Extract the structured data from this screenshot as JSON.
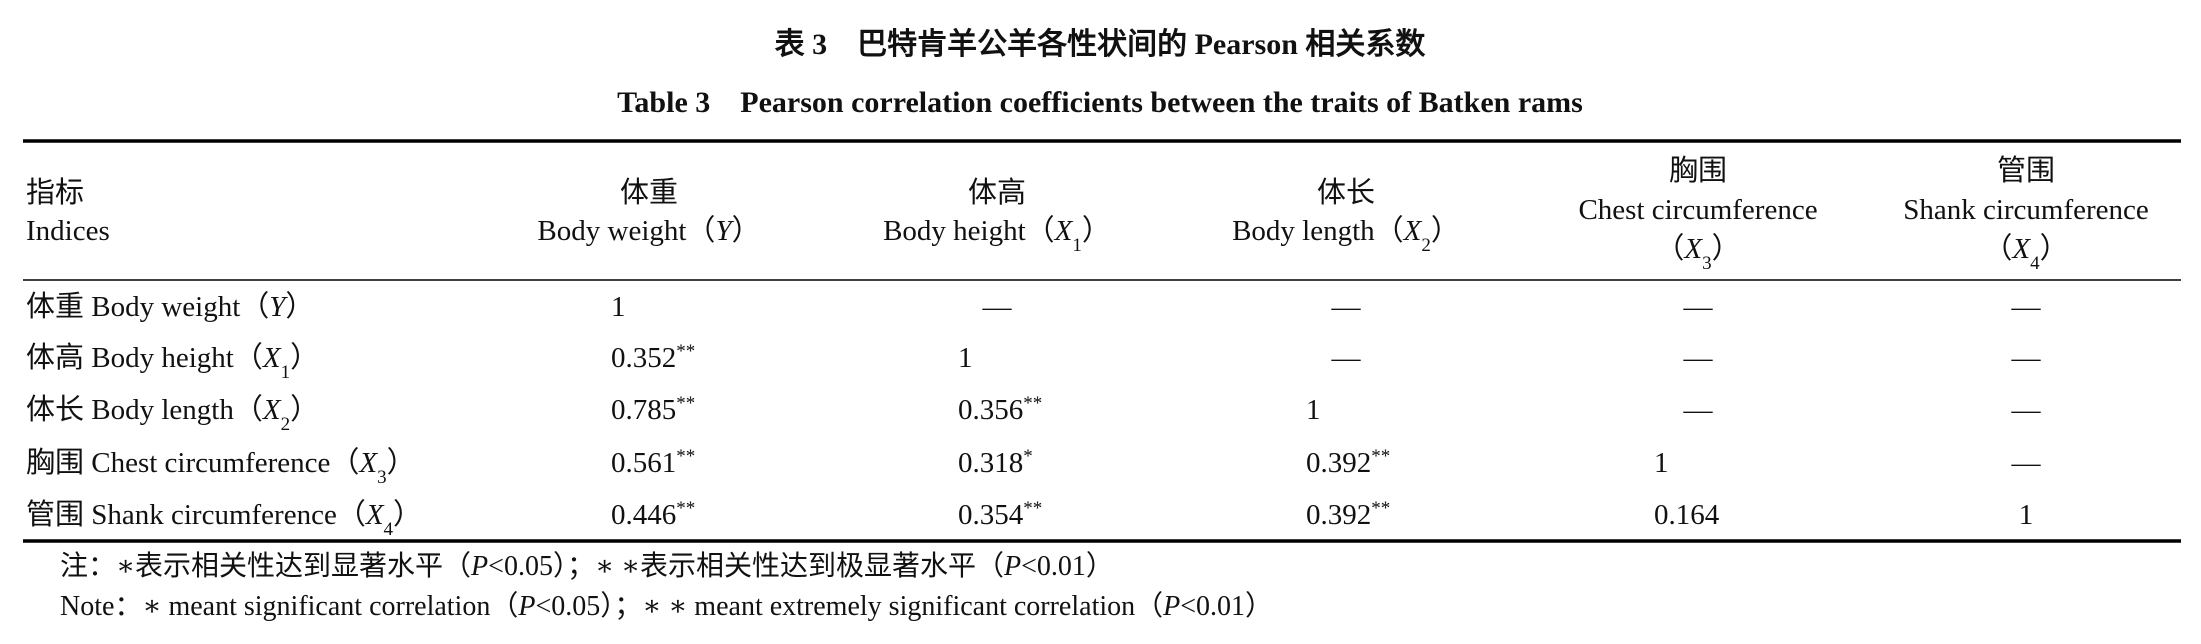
{
  "title_zh": "表 3　巴特肯羊公羊各性状间的 Pearson 相关系数",
  "title_en": "Table 3　Pearson correlation coefficients between the traits of Batken rams",
  "table": {
    "header": [
      [
        [
          "指标"
        ],
        [
          "Indices"
        ]
      ],
      [
        [
          "体重"
        ],
        [
          "Body weight（",
          {
            "t": "Y",
            "f": "i"
          },
          "）"
        ]
      ],
      [
        [
          "体高"
        ],
        [
          "Body height（",
          {
            "t": "X",
            "f": "i"
          },
          {
            "t": "1",
            "f": "sub"
          },
          "）"
        ]
      ],
      [
        [
          "体长"
        ],
        [
          "Body length（",
          {
            "t": "X",
            "f": "i"
          },
          {
            "t": "2",
            "f": "sub"
          },
          "）"
        ]
      ],
      [
        [
          "胸围"
        ],
        [
          "Chest circumference"
        ],
        [
          "（",
          {
            "t": "X",
            "f": "i"
          },
          {
            "t": "3",
            "f": "sub"
          },
          "）"
        ]
      ],
      [
        [
          "管围"
        ],
        [
          "Shank circumference"
        ],
        [
          "（",
          {
            "t": "X",
            "f": "i"
          },
          {
            "t": "4",
            "f": "sub"
          },
          "）"
        ]
      ]
    ],
    "rows": [
      [
        [
          "体重 Body weight（",
          {
            "t": "Y",
            "f": "i"
          },
          "）"
        ],
        [
          "1"
        ],
        [
          "—"
        ],
        [
          "—"
        ],
        [
          "—"
        ],
        [
          "—"
        ]
      ],
      [
        [
          "体高 Body height（",
          {
            "t": "X",
            "f": "i"
          },
          {
            "t": "1",
            "f": "sub"
          },
          "）"
        ],
        [
          "0.352",
          {
            "t": "**",
            "f": "sup"
          }
        ],
        [
          "1"
        ],
        [
          "—"
        ],
        [
          "—"
        ],
        [
          "—"
        ]
      ],
      [
        [
          "体长 Body length（",
          {
            "t": "X",
            "f": "i"
          },
          {
            "t": "2",
            "f": "sub"
          },
          "）"
        ],
        [
          "0.785",
          {
            "t": "**",
            "f": "sup"
          }
        ],
        [
          "0.356",
          {
            "t": "**",
            "f": "sup"
          }
        ],
        [
          "1"
        ],
        [
          "—"
        ],
        [
          "—"
        ]
      ],
      [
        [
          "胸围 Chest circumference（",
          {
            "t": "X",
            "f": "i"
          },
          {
            "t": "3",
            "f": "sub"
          },
          "）"
        ],
        [
          "0.561",
          {
            "t": "**",
            "f": "sup"
          }
        ],
        [
          "0.318",
          {
            "t": "*",
            "f": "sup"
          }
        ],
        [
          "0.392",
          {
            "t": "**",
            "f": "sup"
          }
        ],
        [
          "1"
        ],
        [
          "—"
        ]
      ],
      [
        [
          "管围 Shank circumference（",
          {
            "t": "X",
            "f": "i"
          },
          {
            "t": "4",
            "f": "sub"
          },
          "）"
        ],
        [
          "0.446",
          {
            "t": "**",
            "f": "sup"
          }
        ],
        [
          "0.354",
          {
            "t": "**",
            "f": "sup"
          }
        ],
        [
          "0.392",
          {
            "t": "**",
            "f": "sup"
          }
        ],
        [
          "0.164"
        ],
        [
          "1"
        ]
      ]
    ]
  },
  "notes": [
    [
      "注：∗表示相关性达到显著水平（",
      {
        "t": "P",
        "f": "i"
      },
      "<0.05）；∗ ∗表示相关性达到极显著水平（",
      {
        "t": "P",
        "f": "i"
      },
      "<0.01）"
    ],
    [
      "Note：∗ meant significant correlation（",
      {
        "t": "P",
        "f": "i"
      },
      "<0.05）；∗ ∗ meant extremely significant correlation（",
      {
        "t": "P",
        "f": "i"
      },
      "<0.01）"
    ]
  ]
}
